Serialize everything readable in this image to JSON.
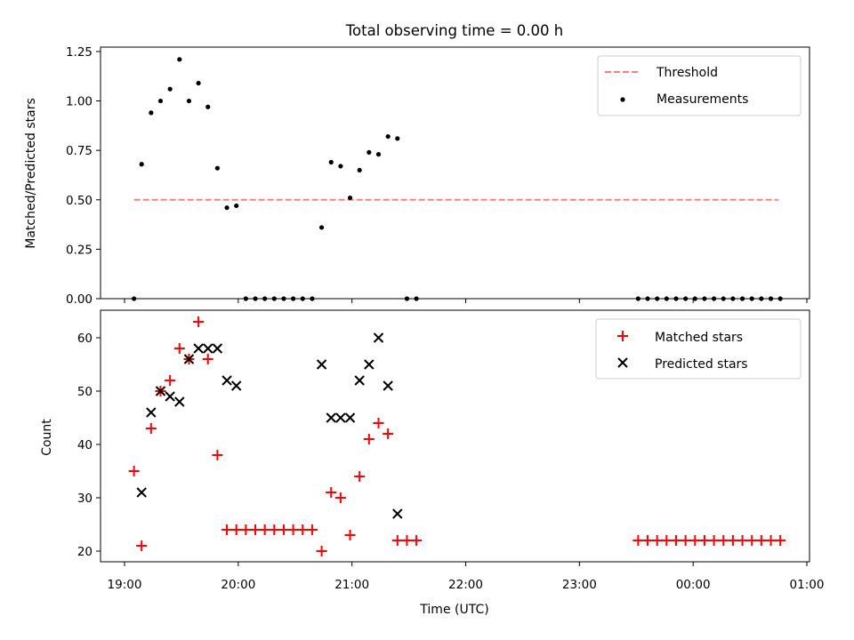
{
  "chart_data": [
    {
      "type": "scatter",
      "title": "Total observing time = 0.00 h",
      "ylabel": "Matched/Predicted stars",
      "xlabel": "",
      "xlim": [
        "19:00",
        "01:00"
      ],
      "ylim": [
        0,
        1.25
      ],
      "yticks": [
        "0.00",
        "0.25",
        "0.50",
        "0.75",
        "1.00",
        "1.25"
      ],
      "legend": {
        "position": "top-right",
        "entries": [
          "Threshold",
          "Measurements"
        ]
      },
      "threshold": {
        "name": "Threshold",
        "value": 0.5,
        "x_start": "19:05",
        "x_end": "00:45",
        "color": "#ff8080",
        "style": "dashed"
      },
      "series": [
        {
          "name": "Measurements",
          "color": "#000000",
          "marker": "dot",
          "points": [
            [
              "19:05",
              0.0
            ],
            [
              "19:09",
              0.68
            ],
            [
              "19:14",
              0.94
            ],
            [
              "19:19",
              1.0
            ],
            [
              "19:24",
              1.06
            ],
            [
              "19:29",
              1.21
            ],
            [
              "19:34",
              1.0
            ],
            [
              "19:39",
              1.09
            ],
            [
              "19:44",
              0.97
            ],
            [
              "19:49",
              0.66
            ],
            [
              "19:54",
              0.46
            ],
            [
              "19:59",
              0.47
            ],
            [
              "20:04",
              0.0
            ],
            [
              "20:09",
              0.0
            ],
            [
              "20:14",
              0.0
            ],
            [
              "20:19",
              0.0
            ],
            [
              "20:24",
              0.0
            ],
            [
              "20:29",
              0.0
            ],
            [
              "20:34",
              0.0
            ],
            [
              "20:39",
              0.0
            ],
            [
              "20:44",
              0.36
            ],
            [
              "20:49",
              0.69
            ],
            [
              "20:54",
              0.67
            ],
            [
              "20:59",
              0.51
            ],
            [
              "21:04",
              0.65
            ],
            [
              "21:09",
              0.74
            ],
            [
              "21:14",
              0.73
            ],
            [
              "21:19",
              0.82
            ],
            [
              "21:24",
              0.81
            ],
            [
              "21:29",
              0.0
            ],
            [
              "21:34",
              0.0
            ],
            [
              "23:31",
              0.0
            ],
            [
              "23:36",
              0.0
            ],
            [
              "23:41",
              0.0
            ],
            [
              "23:46",
              0.0
            ],
            [
              "23:51",
              0.0
            ],
            [
              "23:56",
              0.0
            ],
            [
              "00:01",
              0.0
            ],
            [
              "00:06",
              0.0
            ],
            [
              "00:11",
              0.0
            ],
            [
              "00:16",
              0.0
            ],
            [
              "00:21",
              0.0
            ],
            [
              "00:26",
              0.0
            ],
            [
              "00:31",
              0.0
            ],
            [
              "00:36",
              0.0
            ],
            [
              "00:41",
              0.0
            ],
            [
              "00:46",
              0.0
            ]
          ]
        }
      ]
    },
    {
      "type": "scatter",
      "title": "",
      "ylabel": "Count",
      "xlabel": "Time (UTC)",
      "xlim": [
        "19:00",
        "01:00"
      ],
      "ylim": [
        18,
        65
      ],
      "yticks": [
        "20",
        "30",
        "40",
        "50",
        "60"
      ],
      "xticks": [
        "19:00",
        "20:00",
        "21:00",
        "22:00",
        "23:00",
        "00:00",
        "01:00"
      ],
      "legend": {
        "position": "top-right",
        "entries": [
          "Matched stars",
          "Predicted stars"
        ]
      },
      "series": [
        {
          "name": "Matched stars",
          "color": "#ff0000",
          "marker": "plus",
          "points": [
            [
              "19:05",
              35
            ],
            [
              "19:09",
              21
            ],
            [
              "19:14",
              43
            ],
            [
              "19:19",
              50
            ],
            [
              "19:24",
              52
            ],
            [
              "19:29",
              58
            ],
            [
              "19:34",
              56
            ],
            [
              "19:39",
              63
            ],
            [
              "19:44",
              56
            ],
            [
              "19:49",
              38
            ],
            [
              "19:54",
              24
            ],
            [
              "19:59",
              24
            ],
            [
              "20:04",
              24
            ],
            [
              "20:09",
              24
            ],
            [
              "20:14",
              24
            ],
            [
              "20:19",
              24
            ],
            [
              "20:24",
              24
            ],
            [
              "20:29",
              24
            ],
            [
              "20:34",
              24
            ],
            [
              "20:39",
              24
            ],
            [
              "20:44",
              20
            ],
            [
              "20:49",
              31
            ],
            [
              "20:54",
              30
            ],
            [
              "20:59",
              23
            ],
            [
              "21:04",
              34
            ],
            [
              "21:09",
              41
            ],
            [
              "21:14",
              44
            ],
            [
              "21:19",
              42
            ],
            [
              "21:24",
              22
            ],
            [
              "21:29",
              22
            ],
            [
              "21:34",
              22
            ],
            [
              "23:31",
              22
            ],
            [
              "23:36",
              22
            ],
            [
              "23:41",
              22
            ],
            [
              "23:46",
              22
            ],
            [
              "23:51",
              22
            ],
            [
              "23:56",
              22
            ],
            [
              "00:01",
              22
            ],
            [
              "00:06",
              22
            ],
            [
              "00:11",
              22
            ],
            [
              "00:16",
              22
            ],
            [
              "00:21",
              22
            ],
            [
              "00:26",
              22
            ],
            [
              "00:31",
              22
            ],
            [
              "00:36",
              22
            ],
            [
              "00:41",
              22
            ],
            [
              "00:46",
              22
            ]
          ]
        },
        {
          "name": "Predicted stars",
          "color": "#000000",
          "marker": "x",
          "points": [
            [
              "19:09",
              31
            ],
            [
              "19:14",
              46
            ],
            [
              "19:19",
              50
            ],
            [
              "19:24",
              49
            ],
            [
              "19:29",
              48
            ],
            [
              "19:34",
              56
            ],
            [
              "19:39",
              58
            ],
            [
              "19:44",
              58
            ],
            [
              "19:49",
              58
            ],
            [
              "19:54",
              52
            ],
            [
              "19:59",
              51
            ],
            [
              "20:44",
              55
            ],
            [
              "20:49",
              45
            ],
            [
              "20:54",
              45
            ],
            [
              "20:59",
              45
            ],
            [
              "21:04",
              52
            ],
            [
              "21:09",
              55
            ],
            [
              "21:14",
              60
            ],
            [
              "21:19",
              51
            ],
            [
              "21:24",
              27
            ]
          ]
        }
      ]
    }
  ]
}
